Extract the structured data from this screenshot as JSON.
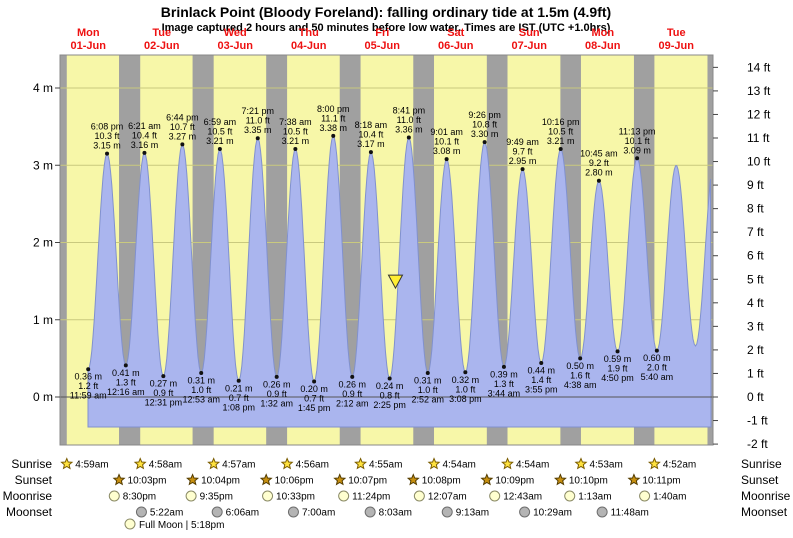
{
  "chart_data": {
    "type": "area",
    "title": "Brinlack Point (Bloody Foreland): falling  ordinary tide at 1.5m (4.9ft)",
    "subtitle": "Image captured 2 hours and 50 minutes before low water. Times are IST (UTC +1.0hrs)",
    "xlabel": "",
    "ylabel_left": "metres",
    "ylabel_right": "feet",
    "ylim_m": [
      -0.61,
      4.42
    ],
    "days": [
      {
        "weekday": "Mon",
        "date": "01-Jun"
      },
      {
        "weekday": "Tue",
        "date": "02-Jun"
      },
      {
        "weekday": "Wed",
        "date": "03-Jun"
      },
      {
        "weekday": "Thu",
        "date": "04-Jun"
      },
      {
        "weekday": "Fri",
        "date": "05-Jun"
      },
      {
        "weekday": "Sat",
        "date": "06-Jun"
      },
      {
        "weekday": "Sun",
        "date": "07-Jun"
      },
      {
        "weekday": "Mon",
        "date": "08-Jun"
      },
      {
        "weekday": "Tue",
        "date": "09-Jun"
      }
    ],
    "y_axis_left": {
      "ticks": [
        {
          "value": 4,
          "label": "4 m"
        },
        {
          "value": 3,
          "label": "3 m"
        },
        {
          "value": 2,
          "label": "2 m"
        },
        {
          "value": 1,
          "label": "1 m"
        },
        {
          "value": 0,
          "label": "0 m"
        }
      ]
    },
    "y_axis_right": {
      "ticks": [
        {
          "value": 14,
          "label": "14 ft"
        },
        {
          "value": 13,
          "label": "13 ft"
        },
        {
          "value": 12,
          "label": "12 ft"
        },
        {
          "value": 11,
          "label": "11 ft"
        },
        {
          "value": 10,
          "label": "10 ft"
        },
        {
          "value": 9,
          "label": "9 ft"
        },
        {
          "value": 8,
          "label": "8 ft"
        },
        {
          "value": 7,
          "label": "7 ft"
        },
        {
          "value": 6,
          "label": "6 ft"
        },
        {
          "value": 5,
          "label": "5 ft"
        },
        {
          "value": 4,
          "label": "4 ft"
        },
        {
          "value": 3,
          "label": "3 ft"
        },
        {
          "value": 2,
          "label": "2 ft"
        },
        {
          "value": 1,
          "label": "1 ft"
        },
        {
          "value": 0,
          "label": "0 ft"
        },
        {
          "value": -1,
          "label": "-1 ft"
        },
        {
          "value": -2,
          "label": "-2 ft"
        }
      ]
    },
    "tide_events": [
      {
        "type": "low",
        "day": 0,
        "time": "11:59 am",
        "height_m": "0.36 m",
        "height_ft": "1.2 ft"
      },
      {
        "type": "high",
        "day": 0,
        "time": "6:08 pm",
        "height_m": "3.15 m",
        "height_ft": "10.3 ft"
      },
      {
        "type": "low",
        "day": 1,
        "time": "12:16 am",
        "height_m": "0.41 m",
        "height_ft": "1.3 ft"
      },
      {
        "type": "high",
        "day": 1,
        "time": "6:21 am",
        "height_m": "3.16 m",
        "height_ft": "10.4 ft"
      },
      {
        "type": "low",
        "day": 1,
        "time": "12:31 pm",
        "height_m": "0.27 m",
        "height_ft": "0.9 ft"
      },
      {
        "type": "high",
        "day": 1,
        "time": "6:44 pm",
        "height_m": "3.27 m",
        "height_ft": "10.7 ft"
      },
      {
        "type": "low",
        "day": 2,
        "time": "12:53 am",
        "height_m": "0.31 m",
        "height_ft": "1.0 ft"
      },
      {
        "type": "high",
        "day": 2,
        "time": "6:59 am",
        "height_m": "3.21 m",
        "height_ft": "10.5 ft"
      },
      {
        "type": "low",
        "day": 2,
        "time": "1:08 pm",
        "height_m": "0.21 m",
        "height_ft": "0.7 ft"
      },
      {
        "type": "high",
        "day": 2,
        "time": "7:21 pm",
        "height_m": "3.35 m",
        "height_ft": "11.0 ft"
      },
      {
        "type": "low",
        "day": 3,
        "time": "1:32 am",
        "height_m": "0.26 m",
        "height_ft": "0.9 ft"
      },
      {
        "type": "high",
        "day": 3,
        "time": "7:38 am",
        "height_m": "3.21 m",
        "height_ft": "10.5 ft"
      },
      {
        "type": "low",
        "day": 3,
        "time": "1:45 pm",
        "height_m": "0.20 m",
        "height_ft": "0.7 ft"
      },
      {
        "type": "high",
        "day": 3,
        "time": "8:00 pm",
        "height_m": "3.38 m",
        "height_ft": "11.1 ft"
      },
      {
        "type": "low",
        "day": 4,
        "time": "2:12 am",
        "height_m": "0.26 m",
        "height_ft": "0.9 ft"
      },
      {
        "type": "high",
        "day": 4,
        "time": "8:18 am",
        "height_m": "3.17 m",
        "height_ft": "10.4 ft"
      },
      {
        "type": "low",
        "day": 4,
        "time": "2:25 pm",
        "height_m": "0.24 m",
        "height_ft": "0.8 ft"
      },
      {
        "type": "high",
        "day": 4,
        "time": "8:41 pm",
        "height_m": "3.36 m",
        "height_ft": "11.0 ft"
      },
      {
        "type": "low",
        "day": 5,
        "time": "2:52 am",
        "height_m": "0.31 m",
        "height_ft": "1.0 ft"
      },
      {
        "type": "high",
        "day": 5,
        "time": "9:01 am",
        "height_m": "3.08 m",
        "height_ft": "10.1 ft"
      },
      {
        "type": "low",
        "day": 5,
        "time": "3:08 pm",
        "height_m": "0.32 m",
        "height_ft": "1.0 ft"
      },
      {
        "type": "high",
        "day": 5,
        "time": "9:26 pm",
        "height_m": "3.30 m",
        "height_ft": "10.8 ft"
      },
      {
        "type": "low",
        "day": 6,
        "time": "3:44 am",
        "height_m": "0.39 m",
        "height_ft": "1.3 ft"
      },
      {
        "type": "high",
        "day": 6,
        "time": "9:49 am",
        "height_m": "2.95 m",
        "height_ft": "9.7 ft"
      },
      {
        "type": "low",
        "day": 6,
        "time": "3:55 pm",
        "height_m": "0.44 m",
        "height_ft": "1.4 ft"
      },
      {
        "type": "high",
        "day": 6,
        "time": "10:16 pm",
        "height_m": "3.21 m",
        "height_ft": "10.5 ft"
      },
      {
        "type": "low",
        "day": 7,
        "time": "4:38 am",
        "height_m": "0.50 m",
        "height_ft": "1.6 ft"
      },
      {
        "type": "high",
        "day": 7,
        "time": "10:45 am",
        "height_m": "2.80 m",
        "height_ft": "9.2 ft"
      },
      {
        "type": "low",
        "day": 7,
        "time": "4:50 pm",
        "height_m": "0.59 m",
        "height_ft": "1.9 ft"
      },
      {
        "type": "high",
        "day": 7,
        "time": "11:13 pm",
        "height_m": "3.09 m",
        "height_ft": "10.1 ft"
      },
      {
        "type": "low",
        "day": 8,
        "time": "5:40 am",
        "height_m": "0.60 m",
        "height_ft": "2.0 ft"
      }
    ],
    "marker": {
      "level_m": 1.5,
      "t_frac": 0.52
    },
    "colors": {
      "day_band": "#f7f7a8",
      "night_band": "#a0a0a0",
      "curve_fill": "#aab5ee",
      "curve_stroke": "#8191ce",
      "day_label": "#ee1111",
      "marker_fill": "#ffee33"
    }
  },
  "astro": {
    "row_labels": {
      "sunrise": "Sunrise",
      "sunset": "Sunset",
      "moonrise": "Moonrise",
      "moonset": "Moonset"
    },
    "sunrise": [
      {
        "day": 0,
        "time": "4:59am"
      },
      {
        "day": 1,
        "time": "4:58am"
      },
      {
        "day": 2,
        "time": "4:57am"
      },
      {
        "day": 3,
        "time": "4:56am"
      },
      {
        "day": 4,
        "time": "4:55am"
      },
      {
        "day": 5,
        "time": "4:54am"
      },
      {
        "day": 6,
        "time": "4:54am"
      },
      {
        "day": 7,
        "time": "4:53am"
      },
      {
        "day": 8,
        "time": "4:52am"
      }
    ],
    "sunset": [
      {
        "day": 0,
        "time": "10:03pm"
      },
      {
        "day": 1,
        "time": "10:04pm"
      },
      {
        "day": 2,
        "time": "10:06pm"
      },
      {
        "day": 3,
        "time": "10:07pm"
      },
      {
        "day": 4,
        "time": "10:08pm"
      },
      {
        "day": 5,
        "time": "10:09pm"
      },
      {
        "day": 6,
        "time": "10:10pm"
      },
      {
        "day": 7,
        "time": "10:11pm"
      }
    ],
    "moonrise": [
      {
        "day": 0,
        "time": "8:30pm"
      },
      {
        "day": 1,
        "time": "9:35pm"
      },
      {
        "day": 2,
        "time": "10:33pm"
      },
      {
        "day": 3,
        "time": "11:24pm"
      },
      {
        "day": 5,
        "time": "12:07am"
      },
      {
        "day": 6,
        "time": "12:43am"
      },
      {
        "day": 7,
        "time": "1:13am"
      },
      {
        "day": 8,
        "time": "1:40am"
      }
    ],
    "moonset": [
      {
        "day": 1,
        "time": "5:22am"
      },
      {
        "day": 2,
        "time": "6:06am"
      },
      {
        "day": 3,
        "time": "7:00am"
      },
      {
        "day": 4,
        "time": "8:03am"
      },
      {
        "day": 5,
        "time": "9:13am"
      },
      {
        "day": 6,
        "time": "10:29am"
      },
      {
        "day": 7,
        "time": "11:48am"
      }
    ],
    "moon_phase_note": "Full Moon | 5:18pm"
  }
}
